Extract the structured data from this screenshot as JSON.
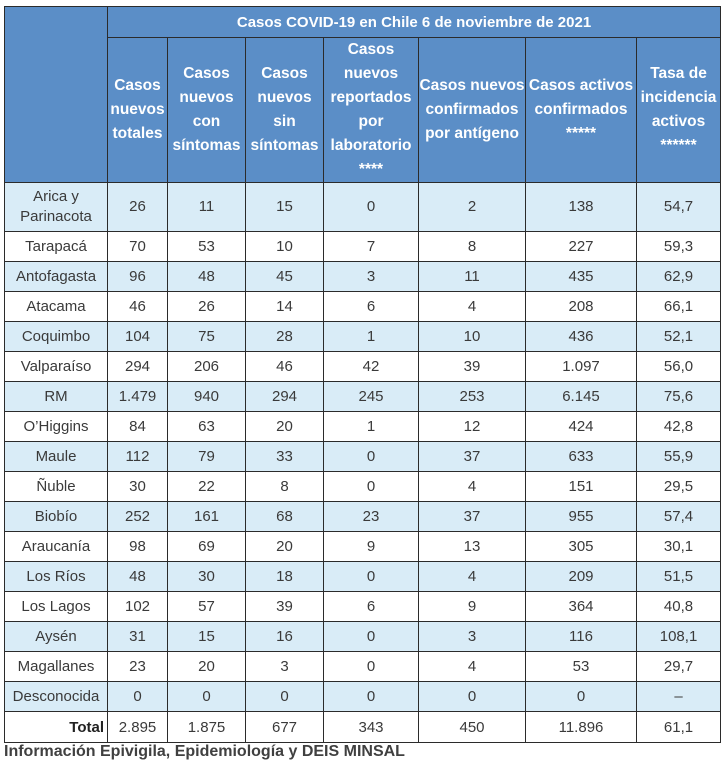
{
  "title": "Casos COVID-19 en Chile 6 de noviembre de 2021",
  "headers": [
    "Casos nuevos totales",
    "Casos nuevos con síntomas",
    "Casos nuevos sin síntomas",
    "Casos nuevos reportados por laboratorio ****",
    "Casos nuevos confirmados por antígeno",
    "Casos activos confirmados *****",
    "Tasa de incidencia activos ******"
  ],
  "rows": [
    {
      "region": "Arica y Parinacota",
      "values": [
        "26",
        "11",
        "15",
        "0",
        "2",
        "138",
        "54,7"
      ]
    },
    {
      "region": "Tarapacá",
      "values": [
        "70",
        "53",
        "10",
        "7",
        "8",
        "227",
        "59,3"
      ]
    },
    {
      "region": "Antofagasta",
      "values": [
        "96",
        "48",
        "45",
        "3",
        "11",
        "435",
        "62,9"
      ]
    },
    {
      "region": "Atacama",
      "values": [
        "46",
        "26",
        "14",
        "6",
        "4",
        "208",
        "66,1"
      ]
    },
    {
      "region": "Coquimbo",
      "values": [
        "104",
        "75",
        "28",
        "1",
        "10",
        "436",
        "52,1"
      ]
    },
    {
      "region": "Valparaíso",
      "values": [
        "294",
        "206",
        "46",
        "42",
        "39",
        "1.097",
        "56,0"
      ]
    },
    {
      "region": "RM",
      "values": [
        "1.479",
        "940",
        "294",
        "245",
        "253",
        "6.145",
        "75,6"
      ]
    },
    {
      "region": "O’Higgins",
      "values": [
        "84",
        "63",
        "20",
        "1",
        "12",
        "424",
        "42,8"
      ]
    },
    {
      "region": "Maule",
      "values": [
        "112",
        "79",
        "33",
        "0",
        "37",
        "633",
        "55,9"
      ]
    },
    {
      "region": "Ñuble",
      "values": [
        "30",
        "22",
        "8",
        "0",
        "4",
        "151",
        "29,5"
      ]
    },
    {
      "region": "Biobío",
      "values": [
        "252",
        "161",
        "68",
        "23",
        "37",
        "955",
        "57,4"
      ]
    },
    {
      "region": "Araucanía",
      "values": [
        "98",
        "69",
        "20",
        "9",
        "13",
        "305",
        "30,1"
      ]
    },
    {
      "region": "Los Ríos",
      "values": [
        "48",
        "30",
        "18",
        "0",
        "4",
        "209",
        "51,5"
      ]
    },
    {
      "region": "Los Lagos",
      "values": [
        "102",
        "57",
        "39",
        "6",
        "9",
        "364",
        "40,8"
      ]
    },
    {
      "region": "Aysén",
      "values": [
        "31",
        "15",
        "16",
        "0",
        "3",
        "116",
        "108,1"
      ]
    },
    {
      "region": "Magallanes",
      "values": [
        "23",
        "20",
        "3",
        "0",
        "4",
        "53",
        "29,7"
      ]
    },
    {
      "region": "Desconocida",
      "values": [
        "0",
        "0",
        "0",
        "0",
        "0",
        "0",
        "–"
      ]
    }
  ],
  "total": {
    "label": "Total",
    "values": [
      "2.895",
      "1.875",
      "677",
      "343",
      "450",
      "11.896",
      "61,1"
    ]
  },
  "source": "Información Epivigila, Epidemiología y DEIS MINSAL",
  "colors": {
    "header_bg": "#5b8ec7",
    "stripe_bg": "#d9ecf7"
  }
}
